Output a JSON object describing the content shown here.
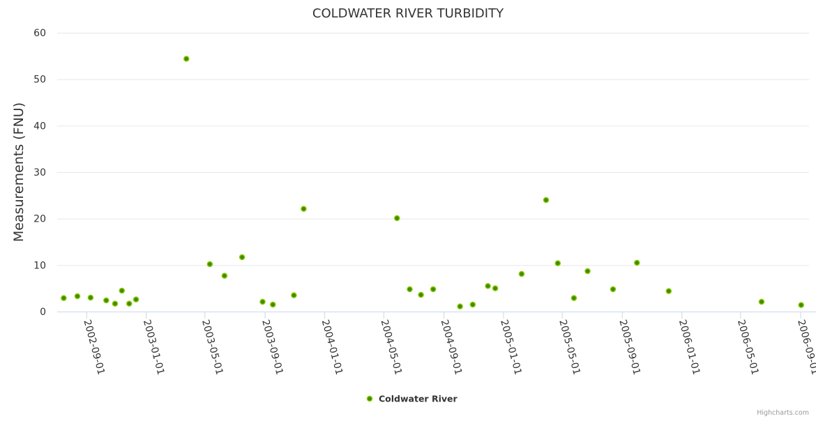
{
  "chart_data": {
    "type": "scatter",
    "title": "COLDWATER RIVER TURBIDITY",
    "xlabel": "",
    "ylabel": "Measurements (FNU)",
    "ylim": [
      0,
      60
    ],
    "yticks": [
      0,
      10,
      20,
      30,
      40,
      50,
      60
    ],
    "xticks": [
      "2002-09-01",
      "2003-01-01",
      "2003-05-01",
      "2003-09-01",
      "2004-01-01",
      "2004-05-01",
      "2004-09-01",
      "2005-01-01",
      "2005-05-01",
      "2005-09-01",
      "2006-01-01",
      "2006-05-01",
      "2006-09-01"
    ],
    "grid": true,
    "legend": "bottom-center",
    "series": [
      {
        "name": "Coldwater River",
        "color": "#4a9a00",
        "points": [
          {
            "x": "2002-07-16",
            "y": 2.9
          },
          {
            "x": "2002-08-13",
            "y": 3.3
          },
          {
            "x": "2002-09-09",
            "y": 3.0
          },
          {
            "x": "2002-10-11",
            "y": 2.4
          },
          {
            "x": "2002-10-29",
            "y": 1.7
          },
          {
            "x": "2002-11-12",
            "y": 4.5
          },
          {
            "x": "2002-11-27",
            "y": 1.7
          },
          {
            "x": "2002-12-11",
            "y": 2.6
          },
          {
            "x": "2003-03-24",
            "y": 54.4
          },
          {
            "x": "2003-05-11",
            "y": 10.2
          },
          {
            "x": "2003-06-10",
            "y": 7.7
          },
          {
            "x": "2003-07-16",
            "y": 11.7
          },
          {
            "x": "2003-08-27",
            "y": 2.1
          },
          {
            "x": "2003-09-17",
            "y": 1.5
          },
          {
            "x": "2003-10-30",
            "y": 3.5
          },
          {
            "x": "2003-11-19",
            "y": 22.1
          },
          {
            "x": "2004-05-28",
            "y": 20.1
          },
          {
            "x": "2004-06-23",
            "y": 4.8
          },
          {
            "x": "2004-07-16",
            "y": 3.6
          },
          {
            "x": "2004-08-10",
            "y": 4.8
          },
          {
            "x": "2004-10-04",
            "y": 1.1
          },
          {
            "x": "2004-10-30",
            "y": 1.5
          },
          {
            "x": "2004-11-30",
            "y": 5.5
          },
          {
            "x": "2004-12-15",
            "y": 5.0
          },
          {
            "x": "2005-02-07",
            "y": 8.1
          },
          {
            "x": "2005-03-29",
            "y": 24.0
          },
          {
            "x": "2005-04-22",
            "y": 10.4
          },
          {
            "x": "2005-05-25",
            "y": 2.9
          },
          {
            "x": "2005-06-22",
            "y": 8.7
          },
          {
            "x": "2005-08-13",
            "y": 4.8
          },
          {
            "x": "2005-10-01",
            "y": 10.5
          },
          {
            "x": "2005-12-05",
            "y": 4.4
          },
          {
            "x": "2006-06-13",
            "y": 2.1
          },
          {
            "x": "2006-09-02",
            "y": 1.4
          }
        ]
      }
    ]
  },
  "credits": "Highcharts.com"
}
